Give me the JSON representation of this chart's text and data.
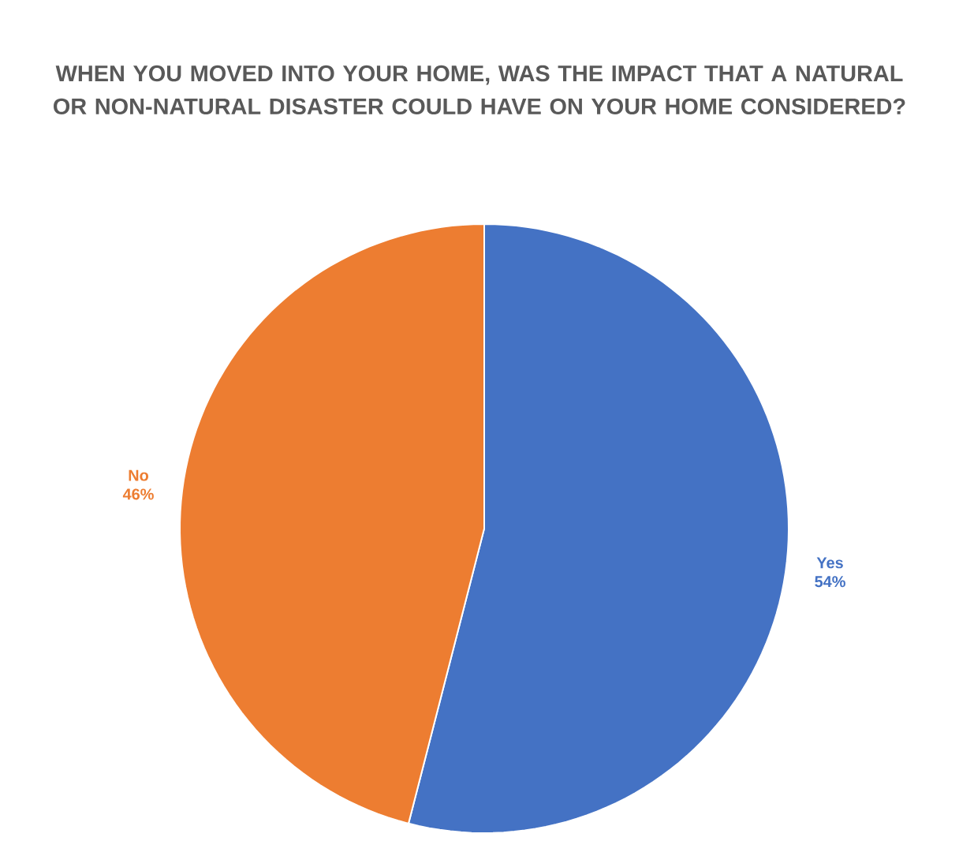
{
  "chart_data": {
    "type": "pie",
    "title": "WHEN YOU MOVED INTO YOUR HOME, WAS THE IMPACT THAT A NATURAL OR NON-NATURAL DISASTER COULD HAVE ON YOUR HOME CONSIDERED?",
    "categories": [
      "Yes",
      "No"
    ],
    "values": [
      54,
      46
    ],
    "value_labels": [
      "54%",
      "46%"
    ],
    "colors": [
      "#4472c4",
      "#ed7d31"
    ]
  }
}
